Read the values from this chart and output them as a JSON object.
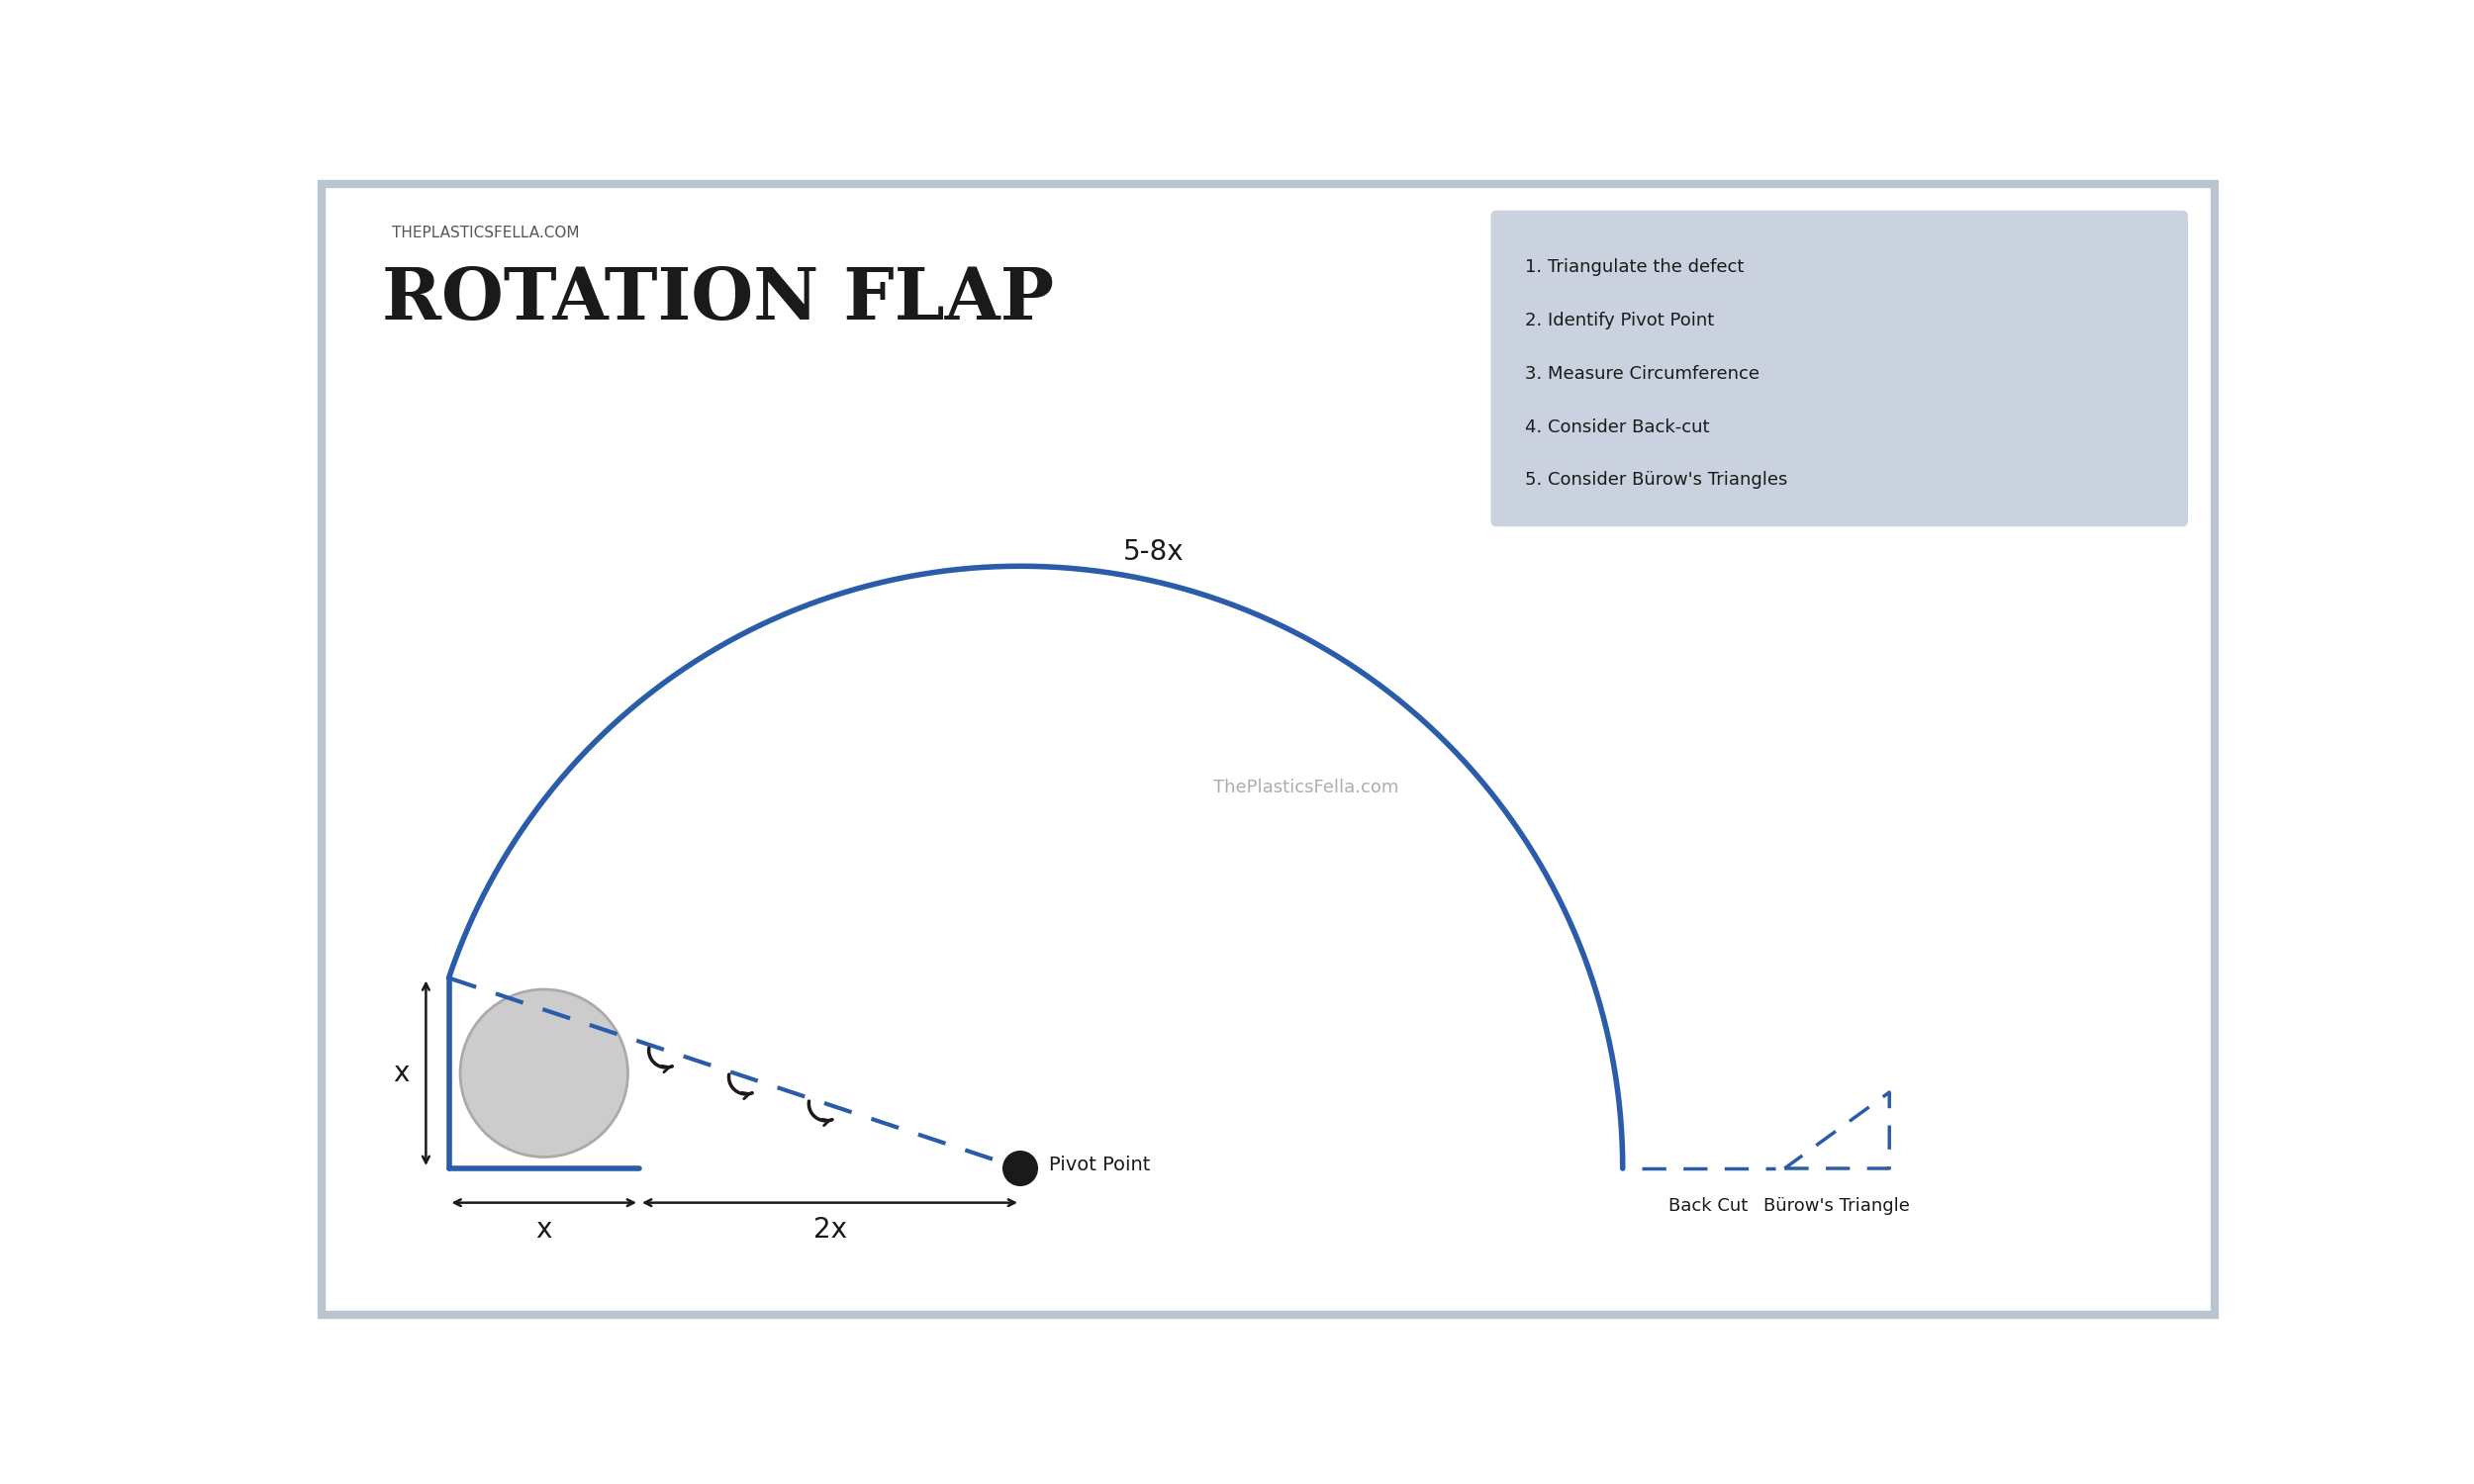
{
  "bg_color": "#ffffff",
  "border_color": "#b8c4d0",
  "title_top": "THEPLASTICSFELLA.COM",
  "title_main": "ROTATION FLAP",
  "watermark": "ThePlasticsFella.com",
  "arc_color": "#2a5caa",
  "arc_linewidth": 4,
  "dashed_color": "#2a5caa",
  "steps": [
    "1. Triangulate the defect",
    "2. Identify Pivot Point",
    "3. Measure Circumference",
    "4. Consider Back-cut",
    "5. Consider Bürow's Triangles"
  ],
  "steps_box_color": "#b8c4d4",
  "label_5_8x": "5-8x",
  "label_x_side": "x",
  "label_x_bottom": "x",
  "label_2x": "2x",
  "pivot_label": "Pivot Point",
  "back_cut_label": "Back Cut",
  "burow_label": "Bürow's Triangle",
  "defect_color": "#cccccc",
  "defect_edge": "#aaaaaa",
  "annotation_color": "#1a1a1a"
}
